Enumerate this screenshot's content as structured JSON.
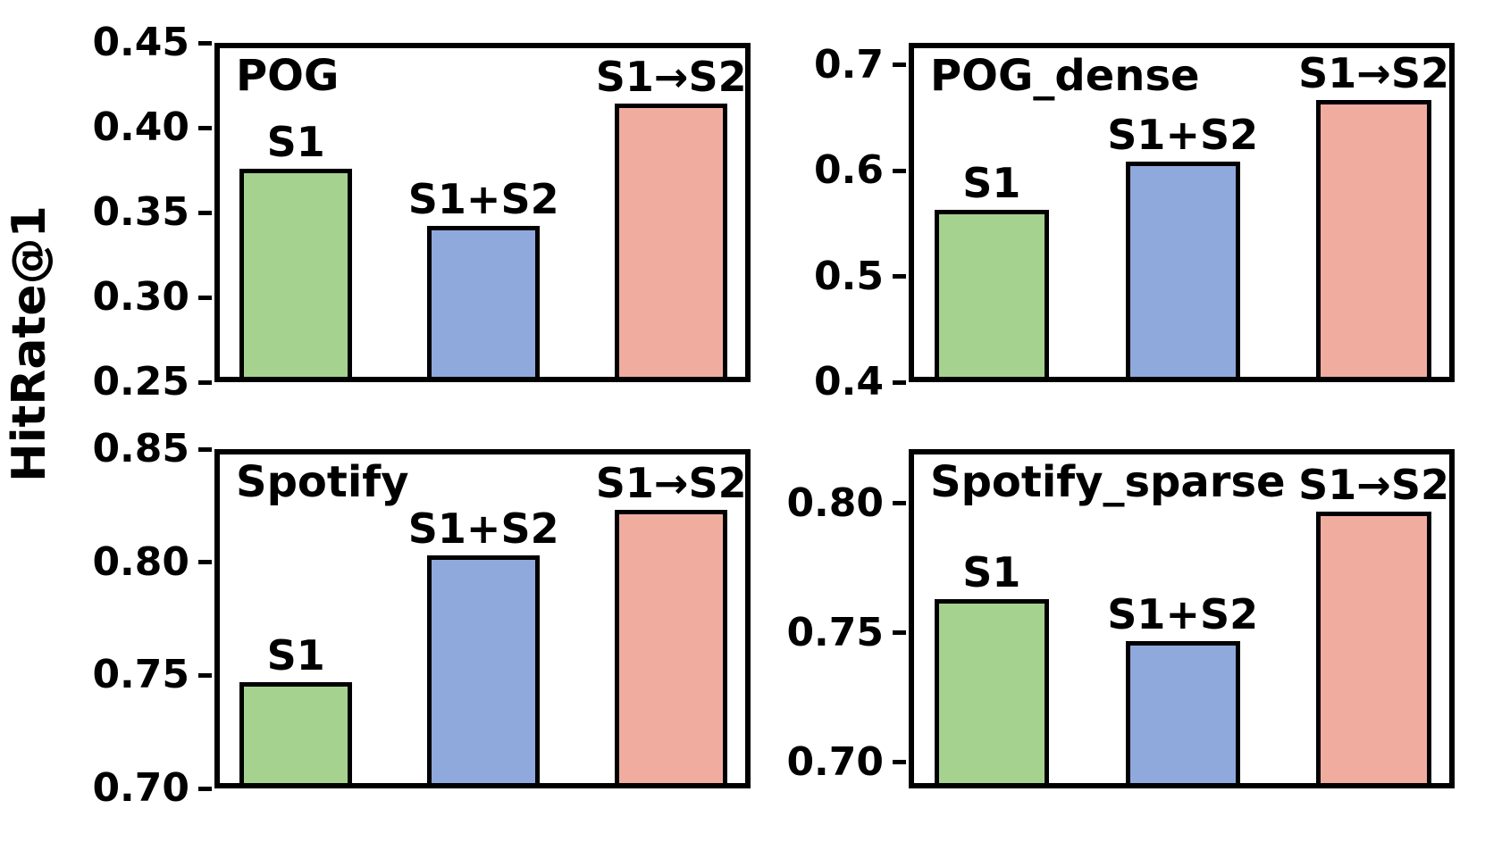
{
  "figure": {
    "ylabel": "HitRate@1",
    "background_color": "#ffffff",
    "text_color": "#000000",
    "edge_color": "#000000"
  },
  "chart_data": [
    {
      "type": "bar",
      "title": "POG",
      "categories": [
        "S1",
        "S1+S2",
        "S1→S2"
      ],
      "values": [
        0.376,
        0.342,
        0.414
      ],
      "bar_colors": [
        "#A6D28F",
        "#8FA9DC",
        "#F1ACA0"
      ],
      "xlabel": "",
      "ylabel": "HitRate@1",
      "ylim": [
        0.25,
        0.45
      ],
      "ytick_values": [
        0.45,
        0.4,
        0.35,
        0.3,
        0.25
      ],
      "ytick_labels": [
        "0.45",
        "0.40",
        "0.35",
        "0.30",
        "0.25"
      ],
      "grid": false,
      "legend": "none"
    },
    {
      "type": "bar",
      "title": "POG_dense",
      "categories": [
        "S1",
        "S1+S2",
        "S1→S2"
      ],
      "values": [
        0.563,
        0.609,
        0.667
      ],
      "bar_colors": [
        "#A6D28F",
        "#8FA9DC",
        "#F1ACA0"
      ],
      "xlabel": "",
      "ylabel": "HitRate@1",
      "ylim": [
        0.4,
        0.721
      ],
      "ytick_values": [
        0.7,
        0.6,
        0.5,
        0.4
      ],
      "ytick_labels": [
        "0.7",
        "0.6",
        "0.5",
        "0.4"
      ],
      "grid": false,
      "legend": "none"
    },
    {
      "type": "bar",
      "title": "Spotify",
      "categories": [
        "S1",
        "S1+S2",
        "S1→S2"
      ],
      "values": [
        0.747,
        0.803,
        0.823
      ],
      "bar_colors": [
        "#A6D28F",
        "#8FA9DC",
        "#F1ACA0"
      ],
      "xlabel": "",
      "ylabel": "HitRate@1",
      "ylim": [
        0.7,
        0.85
      ],
      "ytick_values": [
        0.85,
        0.8,
        0.75,
        0.7
      ],
      "ytick_labels": [
        "0.85",
        "0.80",
        "0.75",
        "0.70"
      ],
      "grid": false,
      "legend": "none"
    },
    {
      "type": "bar",
      "title": "Spotify_sparse",
      "categories": [
        "S1",
        "S1+S2",
        "S1→S2"
      ],
      "values": [
        0.763,
        0.747,
        0.797
      ],
      "bar_colors": [
        "#A6D28F",
        "#8FA9DC",
        "#F1ACA0"
      ],
      "xlabel": "",
      "ylabel": "HitRate@1",
      "ylim": [
        0.69,
        0.821
      ],
      "ytick_values": [
        0.8,
        0.75,
        0.7
      ],
      "ytick_labels": [
        "0.80",
        "0.75",
        "0.70"
      ],
      "grid": false,
      "legend": "none"
    }
  ]
}
